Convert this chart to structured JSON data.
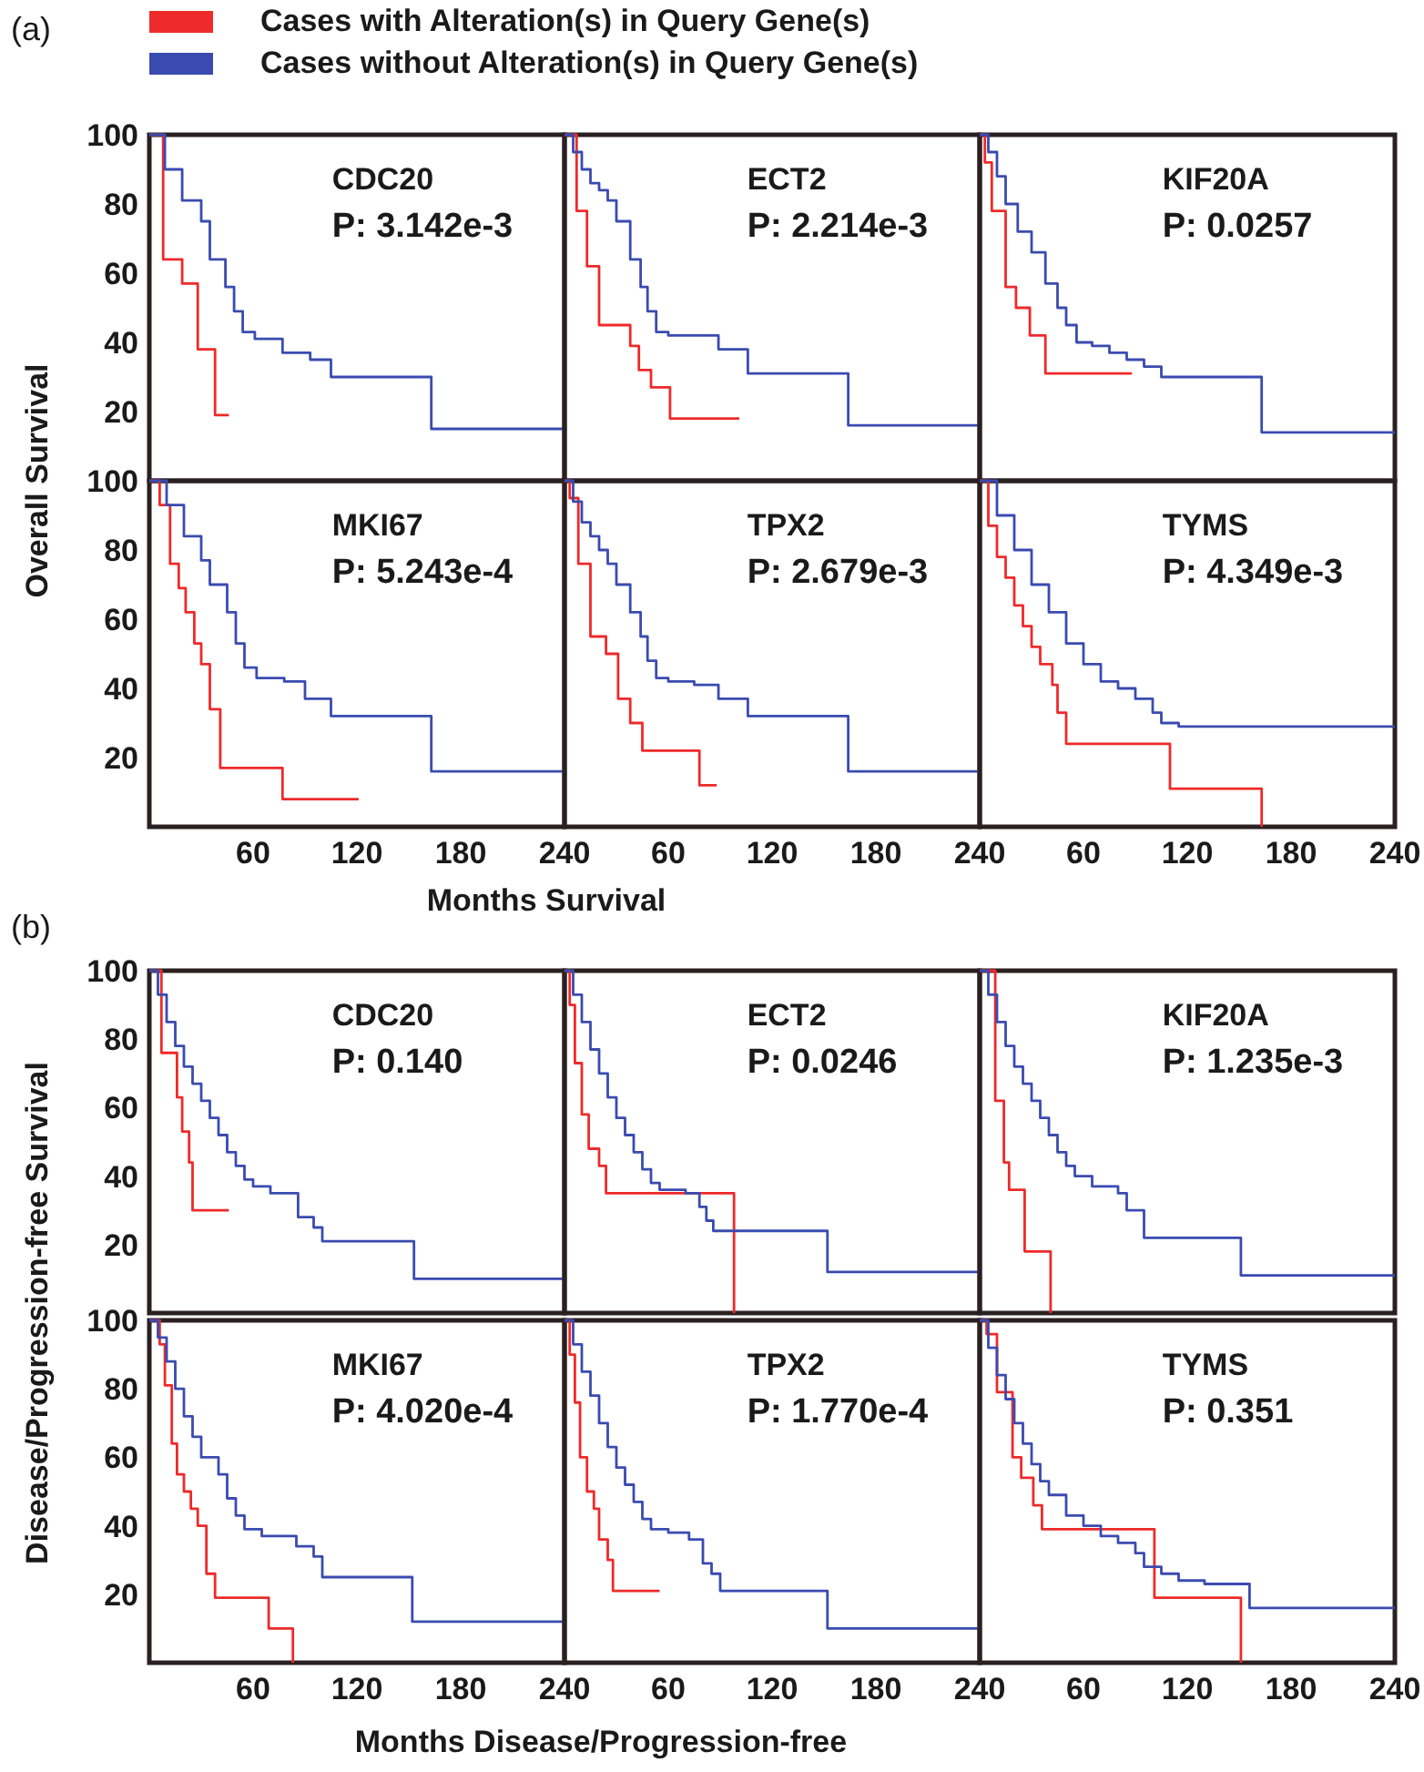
{
  "chart_data": [
    {
      "type": "step",
      "title": "(a)",
      "ylabel": "Overall  Survival",
      "legend": "top",
      "annotations": [
        "CDC20",
        "P: 3.142e-3"
      ],
      "xlim": [
        0,
        240
      ],
      "ylim": [
        0,
        100
      ],
      "yticks": [
        20,
        40,
        60,
        80,
        100
      ],
      "tick_labels": "y",
      "series": [
        {
          "name": "Cases with Alteration(s) in Query Gene(s)",
          "color": "#ee2a2a",
          "x": [
            0,
            8,
            19,
            28,
            38,
            46
          ],
          "values": [
            100,
            64,
            57,
            38,
            19,
            19
          ]
        },
        {
          "name": "Cases without Alteration(s) in Query Gene(s)",
          "color": "#3a4bb0",
          "x": [
            0,
            9,
            19,
            30,
            35,
            44,
            49,
            54,
            61,
            77,
            93,
            105,
            163,
            240
          ],
          "values": [
            100,
            90,
            81,
            75,
            64,
            56,
            49,
            43,
            41,
            37,
            35,
            30,
            15,
            15
          ]
        }
      ]
    },
    {
      "type": "step",
      "annotations": [
        "ECT2",
        "P: 2.214e-3"
      ],
      "xlim": [
        0,
        240
      ],
      "ylim": [
        0,
        100
      ],
      "tick_labels": false,
      "series": [
        {
          "color": "#ee2a2a",
          "x": [
            0,
            7,
            13,
            20,
            38,
            43,
            50,
            61,
            101
          ],
          "values": [
            100,
            78,
            62,
            45,
            39,
            32,
            27,
            18,
            18
          ]
        },
        {
          "color": "#3a4bb0",
          "x": [
            0,
            5,
            10,
            15,
            20,
            25,
            30,
            38,
            44,
            48,
            53,
            60,
            75,
            89,
            106,
            164,
            240
          ],
          "values": [
            100,
            95,
            90,
            86,
            84,
            81,
            75,
            64,
            56,
            49,
            43,
            42,
            42,
            38,
            31,
            16,
            16
          ]
        }
      ]
    },
    {
      "type": "step",
      "annotations": [
        "KIF20A",
        "P: 0.0257"
      ],
      "xlim": [
        0,
        240
      ],
      "ylim": [
        0,
        100
      ],
      "tick_labels": false,
      "series": [
        {
          "color": "#ee2a2a",
          "x": [
            0,
            3,
            7,
            15,
            21,
            29,
            38,
            88
          ],
          "values": [
            100,
            92,
            78,
            56,
            50,
            42,
            31,
            31
          ]
        },
        {
          "color": "#3a4bb0",
          "x": [
            0,
            5,
            10,
            15,
            22,
            30,
            38,
            45,
            50,
            56,
            65,
            75,
            85,
            95,
            105,
            163,
            240
          ],
          "values": [
            100,
            95,
            88,
            80,
            72,
            66,
            57,
            50,
            45,
            40,
            39,
            37,
            35,
            33,
            30,
            14,
            14
          ]
        }
      ]
    },
    {
      "type": "step",
      "annotations": [
        "MKI67",
        "P: 5.243e-4"
      ],
      "xlim": [
        0,
        240
      ],
      "xticks": [
        60,
        120,
        180,
        240
      ],
      "ylim": [
        0,
        100
      ],
      "yticks": [
        20,
        40,
        60,
        80,
        100
      ],
      "series": [
        {
          "color": "#ee2a2a",
          "x": [
            0,
            6,
            12,
            17,
            21,
            26,
            30,
            35,
            41,
            77,
            121
          ],
          "values": [
            100,
            93,
            76,
            69,
            62,
            53,
            47,
            34,
            17,
            8,
            8
          ]
        },
        {
          "color": "#3a4bb0",
          "x": [
            0,
            10,
            20,
            30,
            35,
            45,
            50,
            55,
            62,
            78,
            90,
            105,
            163,
            240
          ],
          "values": [
            100,
            93,
            84,
            77,
            70,
            62,
            53,
            46,
            43,
            42,
            37,
            32,
            16,
            16
          ]
        }
      ]
    },
    {
      "type": "step",
      "xlabel": "Months  Survival",
      "annotations": [
        "TPX2",
        "P: 2.679e-3"
      ],
      "xlim": [
        0,
        240
      ],
      "xticks": [
        60,
        120,
        180,
        240
      ],
      "ylim": [
        0,
        100
      ],
      "tick_labels": "x",
      "series": [
        {
          "color": "#ee2a2a",
          "x": [
            0,
            3,
            8,
            15,
            24,
            31,
            38,
            45,
            78,
            88
          ],
          "values": [
            100,
            95,
            76,
            55,
            50,
            37,
            30,
            22,
            12,
            12
          ]
        },
        {
          "color": "#3a4bb0",
          "x": [
            0,
            5,
            10,
            15,
            20,
            25,
            30,
            38,
            44,
            48,
            53,
            60,
            75,
            89,
            106,
            164,
            240
          ],
          "values": [
            100,
            94,
            88,
            84,
            80,
            76,
            70,
            62,
            55,
            48,
            43,
            42,
            41,
            37,
            32,
            16,
            16
          ]
        }
      ]
    },
    {
      "type": "step",
      "annotations": [
        "TYMS",
        "P: 4.349e-3"
      ],
      "xlim": [
        0,
        240
      ],
      "xticks": [
        60,
        120,
        180,
        240
      ],
      "ylim": [
        0,
        100
      ],
      "tick_labels": "x",
      "series": [
        {
          "color": "#ee2a2a",
          "x": [
            0,
            5,
            10,
            15,
            20,
            25,
            30,
            35,
            42,
            45,
            50,
            110,
            163
          ],
          "values": [
            100,
            87,
            78,
            72,
            64,
            58,
            52,
            47,
            41,
            33,
            24,
            11,
            0
          ]
        },
        {
          "color": "#3a4bb0",
          "x": [
            0,
            10,
            20,
            30,
            40,
            50,
            60,
            70,
            80,
            90,
            100,
            105,
            115,
            240
          ],
          "values": [
            100,
            90,
            80,
            70,
            62,
            53,
            47,
            42,
            40,
            37,
            33,
            30,
            29,
            29
          ]
        }
      ]
    },
    {
      "type": "step",
      "title": "(b)",
      "ylabel": "Disease/Progression-free Survival",
      "annotations": [
        "CDC20",
        "P: 0.140"
      ],
      "xlim": [
        0,
        240
      ],
      "ylim": [
        0,
        100
      ],
      "yticks": [
        20,
        40,
        60,
        80,
        100
      ],
      "tick_labels": "y",
      "series": [
        {
          "color": "#ee2a2a",
          "x": [
            0,
            7,
            16,
            19,
            23,
            25,
            46
          ],
          "values": [
            100,
            76,
            63,
            53,
            44,
            30,
            30
          ]
        },
        {
          "color": "#3a4bb0",
          "x": [
            0,
            5,
            10,
            15,
            20,
            25,
            30,
            35,
            40,
            45,
            50,
            55,
            60,
            70,
            86,
            95,
            100,
            153,
            240
          ],
          "values": [
            100,
            93,
            85,
            78,
            72,
            67,
            62,
            57,
            52,
            47,
            43,
            39,
            37,
            35,
            28,
            25,
            21,
            10,
            10
          ]
        }
      ]
    },
    {
      "type": "step",
      "annotations": [
        "ECT2",
        "P:  0.0246"
      ],
      "xlim": [
        0,
        240
      ],
      "ylim": [
        0,
        100
      ],
      "tick_labels": false,
      "series": [
        {
          "color": "#ee2a2a",
          "x": [
            0,
            3,
            6,
            10,
            14,
            20,
            24,
            98
          ],
          "values": [
            100,
            90,
            73,
            58,
            48,
            43,
            35,
            0
          ]
        },
        {
          "color": "#3a4bb0",
          "x": [
            0,
            5,
            10,
            15,
            20,
            25,
            30,
            35,
            40,
            45,
            50,
            55,
            70,
            78,
            82,
            86,
            152,
            240
          ],
          "values": [
            100,
            93,
            85,
            77,
            70,
            63,
            57,
            52,
            47,
            42,
            38,
            36,
            35,
            31,
            27,
            24,
            12,
            12
          ]
        }
      ]
    },
    {
      "type": "step",
      "annotations": [
        "KIF20A",
        "P: 1.235e-3"
      ],
      "xlim": [
        0,
        240
      ],
      "ylim": [
        0,
        100
      ],
      "tick_labels": false,
      "series": [
        {
          "color": "#ee2a2a",
          "x": [
            0,
            9,
            14,
            17,
            26,
            41
          ],
          "values": [
            100,
            62,
            44,
            36,
            18,
            0
          ]
        },
        {
          "color": "#3a4bb0",
          "x": [
            0,
            5,
            10,
            15,
            20,
            25,
            30,
            35,
            40,
            45,
            50,
            55,
            65,
            80,
            85,
            95,
            151,
            240
          ],
          "values": [
            100,
            93,
            85,
            78,
            72,
            67,
            62,
            57,
            52,
            47,
            43,
            40,
            37,
            35,
            30,
            22,
            11,
            11
          ]
        }
      ]
    },
    {
      "type": "step",
      "annotations": [
        "MKI67",
        "P: 4.020e-4"
      ],
      "xlim": [
        0,
        240
      ],
      "xticks": [
        60,
        120,
        180,
        240
      ],
      "ylim": [
        0,
        100
      ],
      "yticks": [
        20,
        40,
        60,
        80,
        100
      ],
      "series": [
        {
          "color": "#ee2a2a",
          "x": [
            0,
            6,
            9,
            13,
            16,
            20,
            24,
            28,
            33,
            38,
            69,
            83
          ],
          "values": [
            100,
            93,
            81,
            64,
            55,
            50,
            45,
            40,
            26,
            19,
            10,
            0
          ]
        },
        {
          "color": "#3a4bb0",
          "x": [
            0,
            5,
            10,
            15,
            20,
            25,
            30,
            40,
            45,
            50,
            55,
            65,
            85,
            95,
            100,
            152,
            240
          ],
          "values": [
            100,
            95,
            88,
            80,
            72,
            66,
            60,
            55,
            48,
            43,
            39,
            37,
            34,
            31,
            25,
            12,
            12
          ]
        }
      ]
    },
    {
      "type": "step",
      "xlabel": "Months Disease/Progression-free",
      "annotations": [
        "TPX2",
        "P: 1.770e-4"
      ],
      "xlim": [
        0,
        240
      ],
      "xticks": [
        60,
        120,
        180,
        240
      ],
      "ylim": [
        0,
        100
      ],
      "tick_labels": "x",
      "series": [
        {
          "color": "#ee2a2a",
          "x": [
            0,
            3,
            6,
            9,
            13,
            17,
            20,
            25,
            28,
            55
          ],
          "values": [
            100,
            90,
            76,
            60,
            50,
            45,
            36,
            30,
            21,
            21
          ]
        },
        {
          "color": "#3a4bb0",
          "x": [
            0,
            5,
            10,
            15,
            20,
            25,
            30,
            35,
            40,
            45,
            50,
            60,
            72,
            80,
            85,
            90,
            152,
            240
          ],
          "values": [
            100,
            93,
            85,
            78,
            70,
            63,
            57,
            52,
            47,
            42,
            39,
            38,
            36,
            29,
            26,
            21,
            10,
            10
          ]
        }
      ]
    },
    {
      "type": "step",
      "annotations": [
        "TYMS",
        "P: 0.351"
      ],
      "xlim": [
        0,
        240
      ],
      "xticks": [
        60,
        120,
        180,
        240
      ],
      "ylim": [
        0,
        100
      ],
      "tick_labels": "x",
      "series": [
        {
          "color": "#ee2a2a",
          "x": [
            0,
            4,
            10,
            19,
            24,
            31,
            36,
            101,
            151
          ],
          "values": [
            100,
            96,
            79,
            60,
            54,
            46,
            39,
            19,
            0
          ]
        },
        {
          "color": "#3a4bb0",
          "x": [
            0,
            5,
            10,
            15,
            20,
            25,
            30,
            35,
            40,
            50,
            60,
            70,
            80,
            90,
            95,
            105,
            115,
            130,
            156,
            240
          ],
          "values": [
            100,
            92,
            84,
            77,
            70,
            64,
            58,
            53,
            49,
            43,
            40,
            37,
            35,
            32,
            28,
            26,
            24,
            23,
            16,
            16
          ]
        }
      ]
    }
  ]
}
